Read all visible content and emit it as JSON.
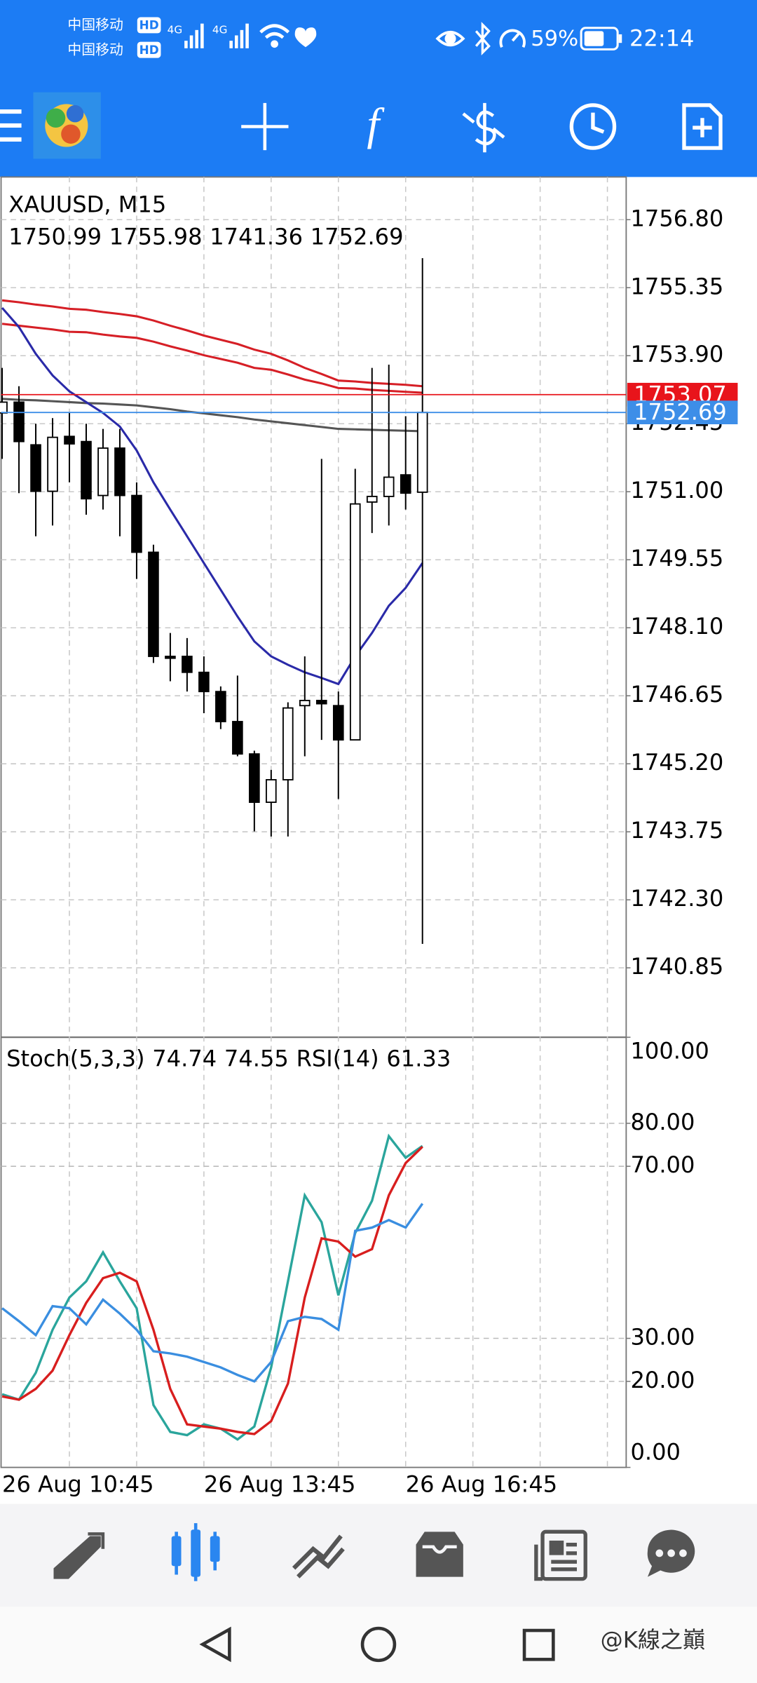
{
  "status_bar": {
    "carrier_1": "中国移动",
    "carrier_2": "中国移动",
    "hd_1": "HD",
    "hd_2": "HD",
    "net_1": "4G",
    "net_2": "4G",
    "battery": "59%",
    "time": "22:14"
  },
  "toolbar": {
    "function_button": "f"
  },
  "chart_data": [
    {
      "type": "candlestick",
      "title": "XAUUSD, M15",
      "categories": [
        "26 Aug 10:45",
        null,
        null,
        null,
        null,
        null,
        null,
        null,
        null,
        null,
        null,
        null,
        "26 Aug 13:45",
        null,
        null,
        null,
        null,
        null,
        null,
        null,
        null,
        null,
        null,
        null,
        "26 Aug 16:45",
        null
      ],
      "open": [
        1752.68,
        1752.91,
        1752.0,
        1751.01,
        1752.18,
        1752.07,
        1750.92,
        1751.93,
        1750.92,
        1749.71,
        1747.49,
        1747.49,
        1747.15,
        1746.74,
        1746.1,
        1745.41,
        1744.38,
        1744.86,
        1746.44,
        1746.55,
        1746.44,
        1745.71,
        1750.78,
        1750.9,
        1751.36,
        1750.99
      ],
      "high": [
        1753.64,
        1753.25,
        1752.45,
        1752.57,
        1752.68,
        1752.45,
        1752.34,
        1752.34,
        1751.2,
        1749.87,
        1747.99,
        1747.88,
        1747.49,
        1746.85,
        1747.08,
        1745.48,
        1745.07,
        1746.51,
        1747.49,
        1751.7,
        1746.74,
        1751.49,
        1753.64,
        1753.71,
        1752.61,
        1755.98
      ],
      "low": [
        1751.7,
        1750.97,
        1750.05,
        1750.28,
        1751.2,
        1750.51,
        1750.62,
        1750.05,
        1749.14,
        1747.35,
        1746.96,
        1746.74,
        1746.28,
        1745.94,
        1745.36,
        1743.76,
        1743.65,
        1743.65,
        1745.36,
        1745.71,
        1744.45,
        1745.71,
        1750.12,
        1750.28,
        1750.62,
        1741.36
      ],
      "close": [
        1752.91,
        1752.07,
        1751.01,
        1752.16,
        1752.02,
        1750.85,
        1751.93,
        1750.92,
        1749.71,
        1747.49,
        1747.45,
        1747.15,
        1746.74,
        1746.1,
        1745.41,
        1744.38,
        1744.86,
        1746.39,
        1746.55,
        1746.48,
        1745.71,
        1750.74,
        1750.9,
        1751.31,
        1750.97,
        1752.69
      ],
      "up_color": "#ffffff",
      "down_color": "#000000",
      "overlays": [
        {
          "color": "#d61f26",
          "values": [
            1755.08,
            1755.04,
            1754.99,
            1754.95,
            1754.9,
            1754.88,
            1754.83,
            1754.79,
            1754.74,
            1754.65,
            1754.54,
            1754.44,
            1754.33,
            1754.24,
            1754.15,
            1754.03,
            1753.94,
            1753.8,
            1753.64,
            1753.51,
            1753.37,
            1753.35,
            1753.32,
            1753.3,
            1753.28,
            1753.25
          ]
        },
        {
          "color": "#d61f26",
          "values": [
            1754.58,
            1754.54,
            1754.5,
            1754.46,
            1754.41,
            1754.4,
            1754.35,
            1754.31,
            1754.28,
            1754.2,
            1754.1,
            1754.01,
            1753.91,
            1753.83,
            1753.75,
            1753.64,
            1753.6,
            1753.5,
            1753.39,
            1753.31,
            1753.21,
            1753.2,
            1753.17,
            1753.15,
            1753.13,
            1753.11
          ]
        },
        {
          "color": "#555555",
          "values": [
            1752.98,
            1752.96,
            1752.95,
            1752.93,
            1752.91,
            1752.89,
            1752.88,
            1752.86,
            1752.84,
            1752.8,
            1752.76,
            1752.71,
            1752.67,
            1752.63,
            1752.59,
            1752.54,
            1752.5,
            1752.46,
            1752.42,
            1752.38,
            1752.34,
            1752.33,
            1752.32,
            1752.31,
            1752.3,
            1752.29
          ]
        },
        {
          "color": "#2a2aa8",
          "values": [
            1754.92,
            1754.51,
            1753.94,
            1753.48,
            1753.14,
            1752.91,
            1752.68,
            1752.39,
            1751.88,
            1751.2,
            1750.62,
            1750.05,
            1749.48,
            1748.91,
            1748.34,
            1747.81,
            1747.49,
            1747.31,
            1747.15,
            1747.03,
            1746.9,
            1747.49,
            1747.99,
            1748.57,
            1748.95,
            1749.48
          ]
        }
      ],
      "price_lines": [
        {
          "value": 1753.07,
          "color": "#e8141b"
        },
        {
          "value": 1752.69,
          "color": "#3d8ee8"
        }
      ],
      "ylim": [
        1739.37,
        1757.71
      ],
      "yticks": [
        {
          "value": 1756.8,
          "label": "1756.80"
        },
        1755.35,
        {
          "value": 1753.9,
          "label": "1753.90"
        },
        1752.45,
        {
          "value": 1751,
          "label": "1751.00"
        },
        1749.55,
        {
          "value": 1748.1,
          "label": "1748.10"
        },
        1746.65,
        {
          "value": 1745.2,
          "label": "1745.20"
        },
        1743.75,
        {
          "value": 1742.3,
          "label": "1742.30"
        },
        1740.85
      ],
      "grid": true
    },
    {
      "type": "line",
      "title": "Stoch(5,3,3)",
      "title_2": "RSI(14)",
      "series": [
        {
          "color": "#2aa59c",
          "values": [
            17,
            15.75,
            22,
            32,
            39.5,
            43.25,
            50,
            43.25,
            37,
            14.5,
            8.25,
            7.5,
            10,
            9,
            6.5,
            9.5,
            23.25,
            43.25,
            63.25,
            57,
            40,
            54.5,
            62,
            77,
            72,
            74.74
          ]
        },
        {
          "color": "#d81e1e",
          "values": [
            16.5,
            15.75,
            18.25,
            22.5,
            30.75,
            38.25,
            44,
            45.25,
            43.25,
            32,
            18.25,
            10,
            9.5,
            9,
            8.25,
            7.75,
            10.75,
            19.5,
            39.5,
            53.25,
            52.5,
            49,
            50.75,
            63.25,
            70.75,
            74.55
          ]
        },
        {
          "color": "#3a8ee0",
          "values": [
            37,
            34,
            30.75,
            37.5,
            37,
            33.25,
            39,
            35.75,
            32,
            27,
            26.5,
            25.75,
            24.5,
            23.25,
            21.5,
            20,
            24.5,
            34,
            35,
            34.5,
            32,
            55,
            55.75,
            57.5,
            55.75,
            61.33
          ]
        }
      ],
      "ylim": [
        0,
        100
      ],
      "yticks": [
        {
          "value": 0,
          "label": "0.00"
        },
        {
          "value": 20,
          "label": "20.00"
        },
        {
          "value": 30,
          "label": "30.00"
        },
        {
          "value": 70,
          "label": "70.00"
        },
        {
          "value": 80,
          "label": "80.00"
        },
        {
          "value": 100,
          "label": "100.00"
        }
      ],
      "grid": true
    }
  ],
  "watermark": "@K線之巔"
}
